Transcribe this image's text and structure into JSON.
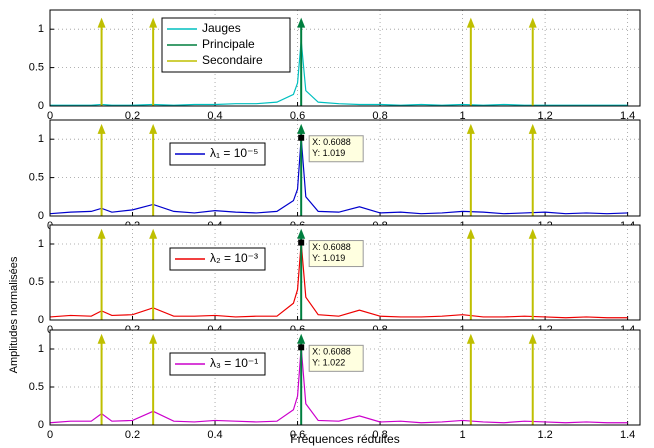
{
  "chart_data": [
    {
      "type": "line",
      "xlabel": "",
      "ylabel": "",
      "x": [
        0,
        0.05,
        0.1,
        0.125,
        0.15,
        0.2,
        0.25,
        0.3,
        0.35,
        0.4,
        0.45,
        0.5,
        0.55,
        0.59,
        0.6,
        0.6088,
        0.62,
        0.65,
        0.7,
        0.75,
        0.8,
        0.85,
        0.9,
        0.95,
        1.0,
        1.05,
        1.1,
        1.15,
        1.2,
        1.25,
        1.3,
        1.35,
        1.4
      ],
      "series": [
        {
          "name": "Jauges",
          "color": "#00bfbf",
          "values": [
            0.01,
            0.01,
            0.01,
            0.02,
            0.01,
            0.01,
            0.02,
            0.01,
            0.02,
            0.02,
            0.03,
            0.03,
            0.05,
            0.15,
            0.3,
            0.85,
            0.2,
            0.05,
            0.03,
            0.02,
            0.02,
            0.01,
            0.02,
            0.01,
            0.02,
            0.01,
            0.02,
            0.01,
            0.01,
            0.01,
            0.01,
            0.01,
            0.01
          ]
        }
      ],
      "arrows": [
        {
          "name": "Principale",
          "color": "#007f3f",
          "x": [
            0.6088
          ],
          "values": [
            1.15
          ]
        },
        {
          "name": "Secondaire",
          "color": "#bfbf00",
          "x": [
            0.125,
            0.25,
            1.02,
            1.17
          ],
          "values": [
            1.15,
            1.15,
            1.15,
            1.15
          ]
        }
      ],
      "xlim": [
        0,
        1.43
      ],
      "xticks": [
        0,
        0.2,
        0.4,
        0.6,
        0.8,
        1,
        1.2,
        1.4
      ],
      "ylim": [
        0,
        1.25
      ],
      "yticks": [
        0,
        0.5,
        1
      ],
      "grid": true,
      "legend": "top-left"
    },
    {
      "type": "line",
      "x": [
        0,
        0.05,
        0.1,
        0.125,
        0.15,
        0.2,
        0.25,
        0.3,
        0.35,
        0.4,
        0.45,
        0.5,
        0.55,
        0.59,
        0.6,
        0.6088,
        0.62,
        0.65,
        0.7,
        0.75,
        0.8,
        0.85,
        0.9,
        0.95,
        1.0,
        1.05,
        1.1,
        1.15,
        1.2,
        1.25,
        1.3,
        1.35,
        1.4
      ],
      "series": [
        {
          "name": "λ₁ = 10⁻⁵",
          "color": "#0000cc",
          "values": [
            0.03,
            0.05,
            0.06,
            0.1,
            0.05,
            0.08,
            0.15,
            0.06,
            0.04,
            0.07,
            0.05,
            0.04,
            0.06,
            0.2,
            0.35,
            1.019,
            0.25,
            0.06,
            0.05,
            0.12,
            0.04,
            0.05,
            0.03,
            0.04,
            0.06,
            0.05,
            0.03,
            0.04,
            0.05,
            0.03,
            0.04,
            0.03,
            0.04
          ]
        }
      ],
      "arrows": [
        {
          "color": "#007f3f",
          "x": [
            0.6088
          ],
          "values": [
            1.2
          ]
        },
        {
          "color": "#bfbf00",
          "x": [
            0.125,
            0.25,
            1.02,
            1.17
          ],
          "values": [
            1.2,
            1.2,
            1.2,
            1.2
          ]
        }
      ],
      "datatip": {
        "x_text": "X: 0.6088",
        "y_text": "Y: 1.019"
      },
      "xlim": [
        0,
        1.43
      ],
      "xticks": [
        0,
        0.2,
        0.4,
        0.6,
        0.8,
        1,
        1.2,
        1.4
      ],
      "ylim": [
        0,
        1.25
      ],
      "yticks": [
        0,
        0.5,
        1
      ],
      "grid": true,
      "legend": "top-left"
    },
    {
      "type": "line",
      "ylabel": "Amplitudes normalisées",
      "x": [
        0,
        0.05,
        0.1,
        0.125,
        0.15,
        0.2,
        0.25,
        0.3,
        0.35,
        0.4,
        0.45,
        0.5,
        0.55,
        0.59,
        0.6,
        0.6088,
        0.62,
        0.65,
        0.7,
        0.75,
        0.8,
        0.85,
        0.9,
        0.95,
        1.0,
        1.05,
        1.1,
        1.15,
        1.2,
        1.25,
        1.3,
        1.35,
        1.4
      ],
      "series": [
        {
          "name": "λ₂ = 10⁻³",
          "color": "#ee0000",
          "values": [
            0.04,
            0.06,
            0.05,
            0.12,
            0.06,
            0.07,
            0.16,
            0.05,
            0.05,
            0.06,
            0.04,
            0.05,
            0.05,
            0.22,
            0.4,
            1.019,
            0.3,
            0.07,
            0.05,
            0.13,
            0.05,
            0.04,
            0.04,
            0.05,
            0.07,
            0.04,
            0.04,
            0.05,
            0.04,
            0.03,
            0.04,
            0.03,
            0.03
          ]
        }
      ],
      "arrows": [
        {
          "color": "#007f3f",
          "x": [
            0.6088
          ],
          "values": [
            1.2
          ]
        },
        {
          "color": "#bfbf00",
          "x": [
            0.125,
            0.25,
            1.02,
            1.17
          ],
          "values": [
            1.2,
            1.2,
            1.2,
            1.2
          ]
        }
      ],
      "datatip": {
        "x_text": "X: 0.6088",
        "y_text": "Y: 1.019"
      },
      "xlim": [
        0,
        1.43
      ],
      "xticks": [
        0,
        0.2,
        0.4,
        0.6,
        0.8,
        1,
        1.2,
        1.4
      ],
      "ylim": [
        0,
        1.25
      ],
      "yticks": [
        0,
        0.5,
        1
      ],
      "grid": true,
      "legend": "top-left"
    },
    {
      "type": "line",
      "xlabel": "Fréquences réduites",
      "x": [
        0,
        0.05,
        0.1,
        0.125,
        0.15,
        0.2,
        0.25,
        0.3,
        0.35,
        0.4,
        0.45,
        0.5,
        0.55,
        0.59,
        0.6,
        0.6088,
        0.62,
        0.65,
        0.7,
        0.75,
        0.8,
        0.85,
        0.9,
        0.95,
        1.0,
        1.05,
        1.1,
        1.15,
        1.2,
        1.25,
        1.3,
        1.35,
        1.4
      ],
      "series": [
        {
          "name": "λ₃ = 10⁻¹",
          "color": "#cc00cc",
          "values": [
            0.03,
            0.05,
            0.05,
            0.15,
            0.05,
            0.06,
            0.18,
            0.05,
            0.04,
            0.06,
            0.05,
            0.04,
            0.05,
            0.2,
            0.38,
            1.022,
            0.28,
            0.06,
            0.05,
            0.12,
            0.04,
            0.05,
            0.03,
            0.04,
            0.06,
            0.04,
            0.03,
            0.05,
            0.04,
            0.03,
            0.04,
            0.03,
            0.03
          ]
        }
      ],
      "arrows": [
        {
          "color": "#007f3f",
          "x": [
            0.6088
          ],
          "values": [
            1.2
          ]
        },
        {
          "color": "#bfbf00",
          "x": [
            0.125,
            0.25,
            1.02,
            1.17
          ],
          "values": [
            1.2,
            1.2,
            1.2,
            1.2
          ]
        }
      ],
      "datatip": {
        "x_text": "X: 0.6088",
        "y_text": "Y: 1.022"
      },
      "xlim": [
        0,
        1.43
      ],
      "xticks": [
        0,
        0.2,
        0.4,
        0.6,
        0.8,
        1,
        1.2,
        1.4
      ],
      "ylim": [
        0,
        1.25
      ],
      "yticks": [
        0,
        0.5,
        1
      ],
      "grid": true,
      "legend": "top-left"
    }
  ]
}
